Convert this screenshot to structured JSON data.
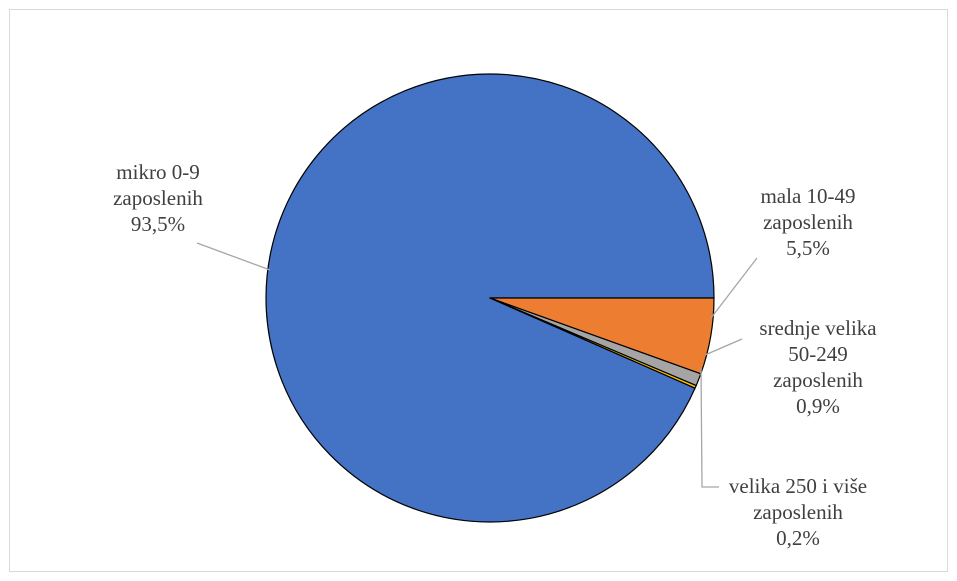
{
  "chart_data": {
    "type": "pie",
    "slices": [
      {
        "label_lines": [
          "mikro 0-9",
          "zaposlenih",
          "93,5%"
        ],
        "value": 93.5,
        "color": "#4472C4"
      },
      {
        "label_lines": [
          "mala 10-49",
          "zaposlenih",
          "5,5%"
        ],
        "value": 5.5,
        "color": "#ED7D31"
      },
      {
        "label_lines": [
          "srednje velika",
          "50-249",
          "zaposlenih",
          "0,9%"
        ],
        "value": 0.9,
        "color": "#A5A5A5"
      },
      {
        "label_lines": [
          "velika 250 i više",
          "zaposlenih",
          "0,2%"
        ],
        "value": 0.2,
        "color": "#FFC000"
      }
    ],
    "legend": "none",
    "data_labels": "outside-with-leader-lines"
  }
}
